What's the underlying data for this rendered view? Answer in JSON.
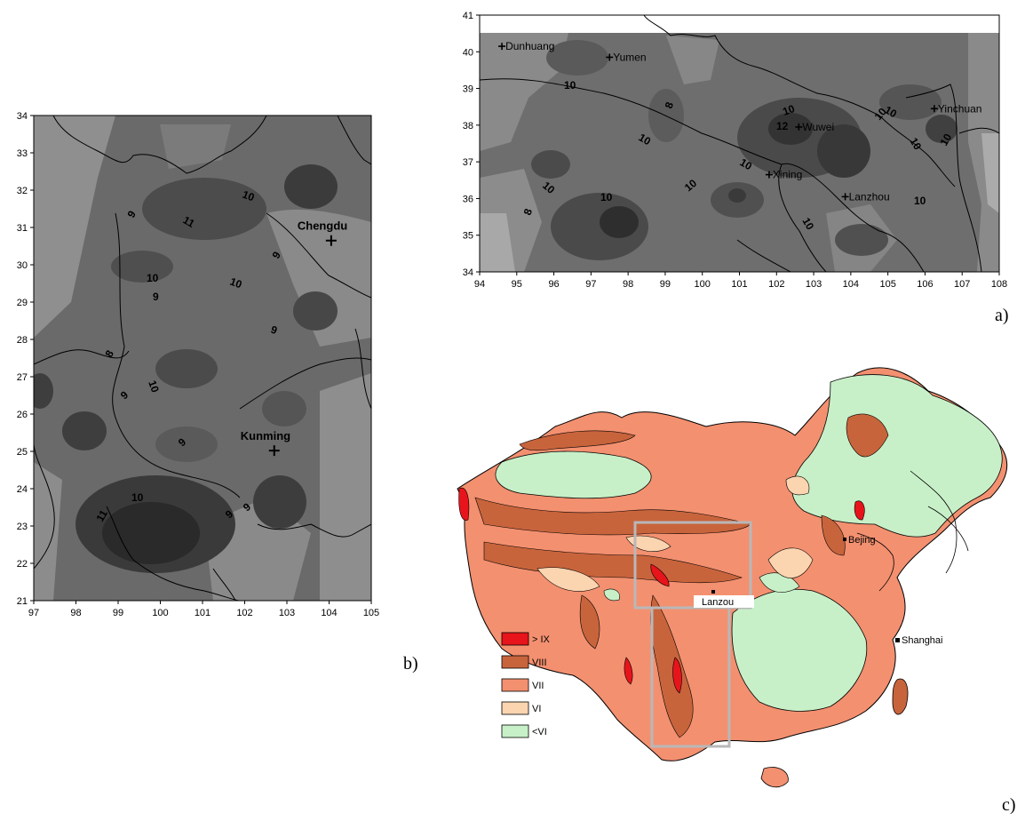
{
  "panel_a": {
    "label": "a)",
    "x_ticks": [
      "94",
      "95",
      "96",
      "97",
      "98",
      "99",
      "100",
      "101",
      "102",
      "103",
      "104",
      "105",
      "106",
      "107",
      "108"
    ],
    "y_ticks": [
      "34",
      "35",
      "36",
      "37",
      "38",
      "39",
      "40",
      "41"
    ],
    "cities": [
      {
        "name": "Dunhuang",
        "lon": 94.6,
        "lat": 40.15
      },
      {
        "name": "Yumen",
        "lon": 97.5,
        "lat": 39.85
      },
      {
        "name": "Wuwei",
        "lon": 102.6,
        "lat": 37.95
      },
      {
        "name": "Xining",
        "lon": 101.8,
        "lat": 36.65
      },
      {
        "name": "Lanzhou",
        "lon": 103.85,
        "lat": 36.05
      },
      {
        "name": "Yinchuan",
        "lon": 106.25,
        "lat": 38.45
      }
    ],
    "contour_labels": [
      "10",
      "8",
      "10",
      "10",
      "12",
      "10",
      "10",
      "10",
      "10",
      "10",
      "10",
      "10",
      "10",
      "8",
      "10",
      "10"
    ]
  },
  "panel_b": {
    "label": "b)",
    "x_ticks": [
      "97",
      "98",
      "99",
      "100",
      "101",
      "102",
      "103",
      "104",
      "105"
    ],
    "y_ticks": [
      "21",
      "22",
      "23",
      "24",
      "25",
      "26",
      "27",
      "28",
      "29",
      "30",
      "31",
      "32",
      "33",
      "34"
    ],
    "cities": [
      {
        "name": "Chengdu",
        "lon": 104.05,
        "lat": 30.65
      },
      {
        "name": "Kunming",
        "lon": 102.7,
        "lat": 25.02
      }
    ],
    "contour_labels": [
      "10",
      "9",
      "11",
      "9",
      "10",
      "9",
      "10",
      "9",
      "8",
      "10",
      "9",
      "9",
      "10",
      "11",
      "9",
      "9"
    ]
  },
  "panel_c": {
    "label": "c)",
    "cities": [
      "Bejing",
      "Lanzou",
      "Shanghai"
    ],
    "legend": [
      {
        "label": "> IX",
        "color": "#e8141b"
      },
      {
        "label": "VIII",
        "color": "#c8643c"
      },
      {
        "label": "VII",
        "color": "#f39070"
      },
      {
        "label": "VI",
        "color": "#fbd4b0"
      },
      {
        "label": "<VI",
        "color": "#c8f0c8"
      }
    ]
  }
}
